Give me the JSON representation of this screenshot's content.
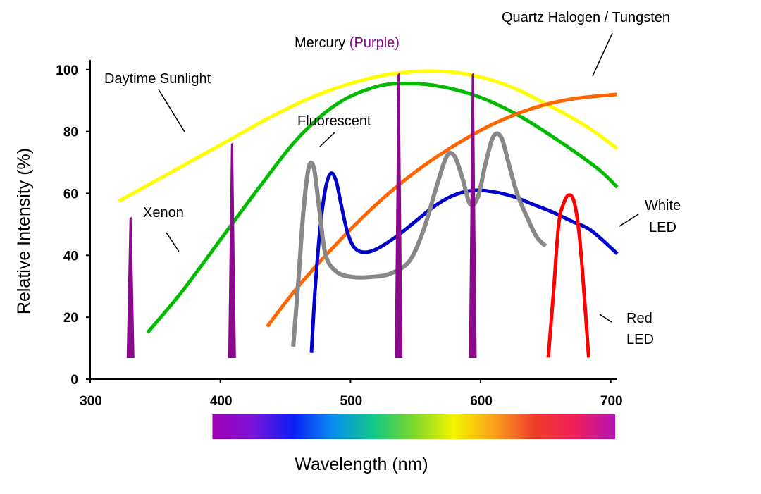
{
  "chart_data": {
    "type": "line",
    "title": "",
    "xlabel": "Wavelength (nm)",
    "ylabel": "Relative Intensity (%)",
    "xlim": [
      300,
      705
    ],
    "ylim": [
      0,
      102
    ],
    "x_ticks": [
      300,
      400,
      500,
      600,
      700
    ],
    "y_ticks": [
      0,
      20,
      40,
      60,
      80,
      100
    ],
    "x_tick_labels": [
      "300",
      "400",
      "500",
      "600",
      "700"
    ],
    "y_tick_labels": [
      "0",
      "20",
      "40",
      "60",
      "80",
      "100"
    ],
    "grid": false,
    "legend": "none",
    "spectrum_bar": {
      "x_range": [
        395,
        705
      ],
      "colors": [
        "#a000b4",
        "#7a14d8",
        "#0a1ef5",
        "#0a8ef0",
        "#10c888",
        "#7cd82a",
        "#f5f500",
        "#fba01a",
        "#f03c2a",
        "#f01e5a",
        "#b414b4"
      ]
    },
    "series": [
      {
        "key": "sunlight",
        "label": "Daytime  Sunlight",
        "color": "#ffff00",
        "x": [
          322,
          350,
          380,
          410,
          440,
          470,
          500,
          530,
          560,
          590,
          620,
          650,
          680,
          705
        ],
        "y": [
          57.5,
          64,
          71,
          78,
          85,
          91,
          95.5,
          98.5,
          99.5,
          98.5,
          95,
          89,
          82,
          74.5
        ]
      },
      {
        "key": "xenon",
        "label": "Xenon",
        "color": "#00bb00",
        "x": [
          344,
          370,
          400,
          430,
          460,
          490,
          520,
          545,
          570,
          600,
          630,
          660,
          690,
          705
        ],
        "y": [
          15,
          28,
          45,
          62,
          78,
          89,
          94.5,
          95.5,
          94.5,
          91,
          85,
          77,
          68,
          62
        ]
      },
      {
        "key": "halogen",
        "label": "Quartz  Halogen / Tungsten",
        "color": "#ff6600",
        "x": [
          436,
          460,
          490,
          520,
          550,
          580,
          610,
          640,
          670,
          705
        ],
        "y": [
          17,
          30,
          44,
          56.5,
          67,
          75.5,
          82.5,
          87.5,
          90.5,
          92
        ]
      },
      {
        "key": "white_led",
        "label": "White\nLED",
        "color": "#0000cc",
        "x": [
          470,
          473,
          477,
          481,
          485,
          489,
          493,
          498,
          503,
          510,
          520,
          535,
          550,
          565,
          580,
          595,
          610,
          625,
          640,
          655,
          670,
          685,
          705
        ],
        "y": [
          8.5,
          30,
          50,
          62,
          66.5,
          64,
          56,
          47,
          42.5,
          41,
          42,
          46,
          51,
          56,
          59.5,
          61,
          60.5,
          59,
          56.5,
          54,
          51,
          48,
          40.5
        ]
      },
      {
        "key": "fluorescent",
        "label": "Fluorescent",
        "color": "#888888",
        "x": [
          456,
          460,
          464,
          468,
          472,
          476,
          481,
          490,
          502,
          515,
          530,
          545,
          556,
          566,
          574,
          580,
          586,
          592,
          598,
          604,
          610,
          616,
          622,
          628,
          635,
          643,
          650
        ],
        "y": [
          10.5,
          32,
          55,
          68.5,
          68,
          55,
          40,
          34.5,
          33,
          33,
          34,
          38,
          48,
          62,
          72,
          72,
          65,
          56.5,
          59,
          70,
          78.5,
          78,
          69,
          60,
          53,
          46,
          43
        ]
      },
      {
        "key": "red_led",
        "label": "Red\nLED",
        "color": "#ff0000",
        "x": [
          652,
          656,
          660,
          664,
          668,
          672,
          676,
          680,
          683
        ],
        "y": [
          7,
          28,
          50,
          57,
          59.5,
          57,
          46,
          25,
          7
        ]
      },
      {
        "key": "mercury",
        "label_parts": [
          "Mercury",
          "(Purple)"
        ],
        "color": "#8b0a8b",
        "type": "lines",
        "lines": [
          {
            "x": 331,
            "y": 52
          },
          {
            "x": 409,
            "y": 76
          },
          {
            "x": 537,
            "y": 98.5
          },
          {
            "x": 594,
            "y": 98.5
          }
        ]
      }
    ]
  }
}
